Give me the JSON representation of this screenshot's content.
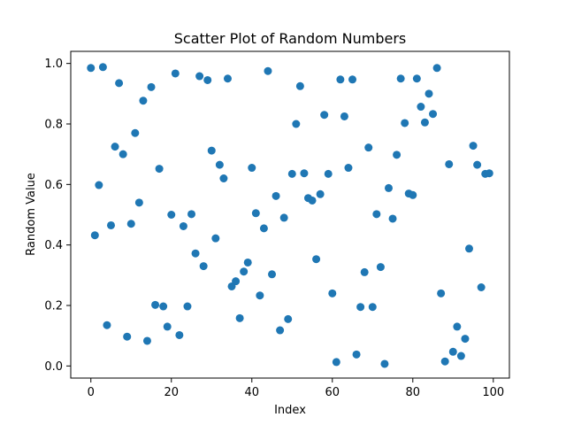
{
  "chart_data": {
    "type": "scatter",
    "title": "Scatter Plot of Random Numbers",
    "xlabel": "Index",
    "ylabel": "Random Value",
    "xlim": [
      -5,
      104
    ],
    "ylim": [
      -0.04,
      1.04
    ],
    "xticks": [
      0,
      20,
      40,
      60,
      80,
      100
    ],
    "yticks": [
      0.0,
      0.2,
      0.4,
      0.6,
      0.8,
      1.0
    ],
    "xtick_labels": [
      "0",
      "20",
      "40",
      "60",
      "80",
      "100"
    ],
    "ytick_labels": [
      "0.0",
      "0.2",
      "0.4",
      "0.6",
      "0.8",
      "1.0"
    ],
    "grid": false,
    "marker_color": "#1f77b4",
    "x": [
      0,
      1,
      2,
      3,
      4,
      5,
      6,
      7,
      8,
      9,
      10,
      11,
      12,
      13,
      14,
      15,
      16,
      17,
      18,
      19,
      20,
      21,
      22,
      23,
      24,
      25,
      26,
      27,
      28,
      29,
      30,
      31,
      32,
      33,
      34,
      35,
      36,
      37,
      38,
      39,
      40,
      41,
      42,
      43,
      44,
      45,
      46,
      47,
      48,
      49,
      50,
      51,
      52,
      53,
      54,
      55,
      56,
      57,
      58,
      59,
      60,
      61,
      62,
      63,
      64,
      65,
      66,
      67,
      68,
      69,
      70,
      71,
      72,
      73,
      74,
      75,
      76,
      77,
      78,
      79,
      80,
      81,
      82,
      83,
      84,
      85,
      86,
      87,
      88,
      89,
      90,
      91,
      92,
      93,
      94,
      95,
      96,
      97,
      98,
      99
    ],
    "y": [
      0.985,
      0.432,
      0.598,
      0.988,
      0.135,
      0.465,
      0.725,
      0.935,
      0.7,
      0.097,
      0.47,
      0.77,
      0.54,
      0.877,
      0.083,
      0.922,
      0.202,
      0.652,
      0.197,
      0.13,
      0.5,
      0.967,
      0.102,
      0.462,
      0.197,
      0.502,
      0.372,
      0.958,
      0.33,
      0.945,
      0.712,
      0.422,
      0.665,
      0.62,
      0.95,
      0.263,
      0.28,
      0.158,
      0.312,
      0.342,
      0.655,
      0.505,
      0.233,
      0.455,
      0.975,
      0.303,
      0.562,
      0.118,
      0.49,
      0.155,
      0.635,
      0.8,
      0.925,
      0.637,
      0.555,
      0.547,
      0.353,
      0.568,
      0.83,
      0.635,
      0.24,
      0.013,
      0.947,
      0.825,
      0.655,
      0.947,
      0.038,
      0.195,
      0.31,
      0.722,
      0.195,
      0.502,
      0.327,
      0.007,
      0.588,
      0.487,
      0.698,
      0.95,
      0.803,
      0.57,
      0.565,
      0.95,
      0.857,
      0.805,
      0.9,
      0.833,
      0.985,
      0.24,
      0.015,
      0.667,
      0.047,
      0.13,
      0.033,
      0.09,
      0.388,
      0.728,
      0.665,
      0.26,
      0.635,
      0.637
    ]
  }
}
